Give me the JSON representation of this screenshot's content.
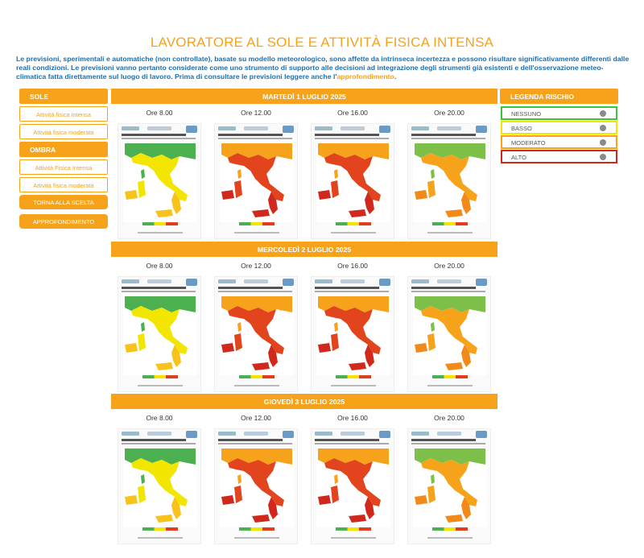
{
  "page": {
    "title": "LAVORATORE AL SOLE E ATTIVITÀ FISICA INTENSA",
    "intro_text": "Le previsioni, sperimentali e automatiche (non controllate), basate su modello meteorologico, sono affette da intrinseca incertezza e possono risultare significativamente differenti dalle reali condizioni. Le previsioni vanno pertanto considerate come uno strumento di supporto alle decisioni ad integrazione degli strumenti già esistenti e dell'osservazione meteo-climatica fatta direttamente sul luogo di lavoro. Prima di consultare le previsioni leggere anche l'",
    "intro_link": "approfondimento",
    "intro_end": "."
  },
  "sidebar": {
    "sole_label": "SOLE",
    "sole_items": [
      "Attività fisica intensa",
      "Attività fisica moderata"
    ],
    "ombra_label": "OMBRA",
    "ombra_items": [
      "Attività Fisica Intensa",
      "Attività fisica moderata"
    ],
    "back_button": "TORNA ALLA SCELTA",
    "more_button": "APPROFONDIMENTO"
  },
  "legend": {
    "title": "LEGENDA RISCHIO",
    "items": [
      {
        "label": "NESSUNO",
        "color": "#3cc43c"
      },
      {
        "label": "BASSO",
        "color": "#f2e600"
      },
      {
        "label": "MODERATO",
        "color": "#f7a21b"
      },
      {
        "label": "ALTO",
        "color": "#d0281c"
      }
    ]
  },
  "days": [
    {
      "label": "MARTEDÌ 1 LUGLIO 2025",
      "times": [
        "Ore 8.00",
        "Ore 12.00",
        "Ore 16.00",
        "Ore 20.00"
      ],
      "risk": [
        "low",
        "high",
        "high",
        "mod"
      ]
    },
    {
      "label": "MERCOLEDÌ 2 LUGLIO 2025",
      "times": [
        "Ore 8.00",
        "Ore 12.00",
        "Ore 16.00",
        "Ore 20.00"
      ],
      "risk": [
        "low",
        "high",
        "high",
        "mod"
      ]
    },
    {
      "label": "GIOVEDÌ 3 LUGLIO 2025",
      "times": [
        "Ore 8.00",
        "Ore 12.00",
        "Ore 16.00",
        "Ore 20.00"
      ],
      "risk": [
        "low",
        "high",
        "high",
        "mod"
      ]
    }
  ],
  "map_colors": {
    "low": {
      "north": "#4caf50",
      "body": "#f2e600",
      "south": "#f7c21b"
    },
    "mod": {
      "north": "#7cc04a",
      "body": "#f7a21b",
      "south": "#f28a1b"
    },
    "high": {
      "north": "#f7a21b",
      "body": "#e2451e",
      "south": "#d0281c"
    }
  }
}
